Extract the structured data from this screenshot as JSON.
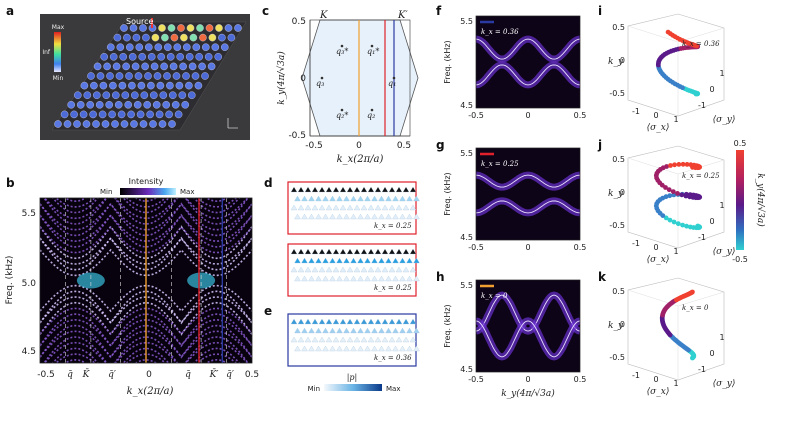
{
  "panels": {
    "a": {
      "label": "a",
      "source": "Source",
      "cbar_max": "Max",
      "cbar_mid": "Inf",
      "cbar_min": "Min"
    },
    "b": {
      "label": "b",
      "cbar_title": "Intensity",
      "cbar_min": "Min",
      "cbar_max": "Max",
      "ylabel": "Freq. (kHz)",
      "xlabel": "k_x(2π/a)",
      "yticks": [
        "5.5",
        "5.0",
        "4.5"
      ],
      "xticks": [
        "-0.5",
        "0",
        "0.5"
      ],
      "xmarks": [
        "q̄",
        "K̄",
        "q̄′",
        "q̄",
        "K̄′",
        "q̄′"
      ]
    },
    "c": {
      "label": "c",
      "ylabel": "k_y(4π/√3a)",
      "xlabel": "k_x(2π/a)",
      "yticks": [
        "0.5",
        "0",
        "-0.5"
      ],
      "xticks": [
        "-0.5",
        "0",
        "0.5"
      ],
      "K": "K",
      "Kp": "K′",
      "q3s": "q₃*",
      "q1s": "q₁*",
      "q3": "q₃",
      "q1": "q₁",
      "q2s": "q₂*",
      "q2": "q₂"
    },
    "d": {
      "label": "d",
      "ann1": "k_x = 0.25",
      "ann2": "k_x = 0.25"
    },
    "e": {
      "label": "e",
      "ann": "k_x = 0.36",
      "cbar_title": "|p|",
      "cbar_min": "Min",
      "cbar_max": "Max"
    },
    "f": {
      "label": "f",
      "ylabel": "Freq. (kHz)",
      "ann": "k_x = 0.36",
      "yticks": [
        "5.5",
        "4.5"
      ],
      "xticks": [
        "-0.5",
        "0",
        "0.5"
      ]
    },
    "g": {
      "label": "g",
      "ylabel": "Freq. (kHz)",
      "ann": "k_x = 0.25",
      "yticks": [
        "5.5",
        "4.5"
      ],
      "xticks": [
        "-0.5",
        "0",
        "0.5"
      ]
    },
    "h": {
      "label": "h",
      "ylabel": "Freq. (kHz)",
      "ann": "k_x = 0",
      "yticks": [
        "5.5",
        "4.5"
      ],
      "xticks": [
        "-0.5",
        "0",
        "0.5"
      ],
      "xlabel": "k_y(4π/√3a)"
    },
    "i": {
      "label": "i",
      "ann": "k_x = 0.36",
      "zlabel": "k_y",
      "xlabel": "⟨σ_x⟩",
      "ylabel": "⟨σ_y⟩",
      "zticks": [
        "0.5",
        "0",
        "-0.5"
      ],
      "xticks": [
        "-1",
        "0",
        "1"
      ],
      "yticks": [
        "-1",
        "0",
        "1"
      ]
    },
    "j": {
      "label": "j",
      "ann": "k_x = 0.25",
      "zlabel": "k_y",
      "xlabel": "⟨σ_x⟩",
      "ylabel": "⟨σ_y⟩",
      "zticks": [
        "0.5",
        "0",
        "-0.5"
      ],
      "xticks": [
        "-1",
        "0",
        "1"
      ],
      "yticks": [
        "-1",
        "0",
        "1"
      ],
      "cbar_title": "k_y(4π/√3a)",
      "cbar_top": "0.5",
      "cbar_bottom": "-0.5"
    },
    "k": {
      "label": "k",
      "ann": "k_x = 0",
      "zlabel": "k_y",
      "xlabel": "⟨σ_x⟩",
      "ylabel": "⟨σ_y⟩",
      "zticks": [
        "0.5",
        "0",
        "-0.5"
      ],
      "xticks": [
        "-1",
        "0",
        "1"
      ],
      "yticks": [
        "-1",
        "0",
        "1"
      ]
    }
  },
  "colors": {
    "orange": "#f0a030",
    "red": "#e0202a",
    "blue": "#2a3aa0",
    "navy": "#1a1f70"
  }
}
